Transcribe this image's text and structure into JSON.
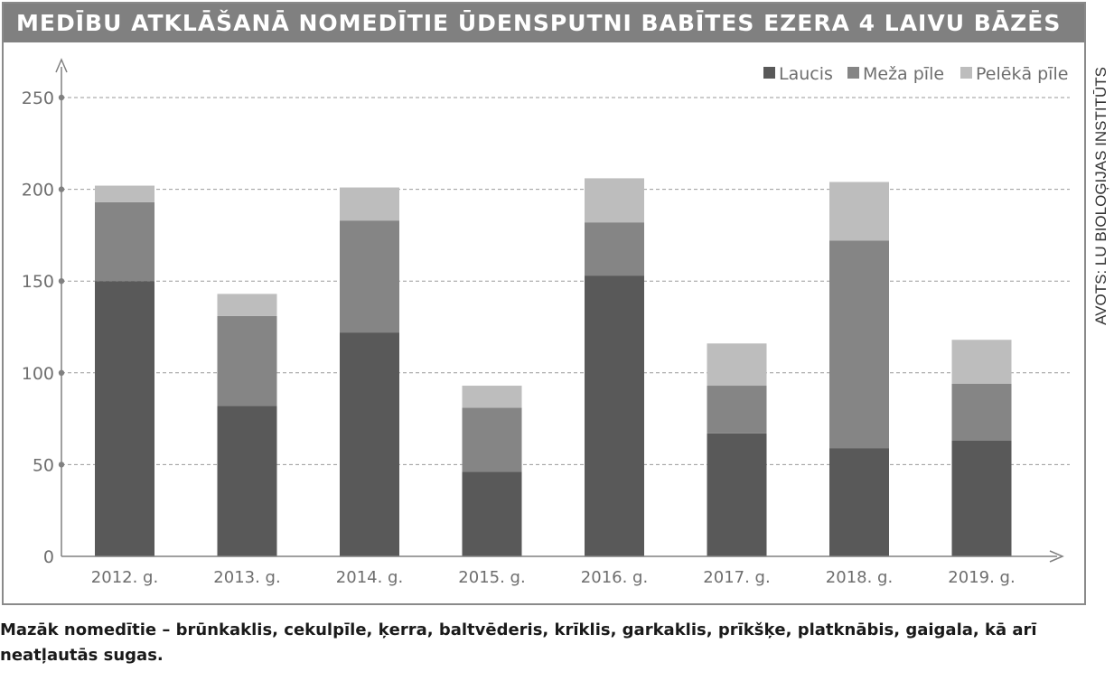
{
  "title": "MEDĪBU ATKLĀŠANĀ NOMEDĪTIE ŪDENSPUTNI BABĪTES EZERA 4 LAIVU BĀZĒS",
  "source": "AVOTS: LU BIOLOĢIJAS INSTITŪTS",
  "caption": "Mazāk nomedītie – brūnkaklis, cekulpīle, ķerra, baltvēderis, krīklis, garkaklis, prīkšķe, platknābis, gaigala, kā arī neatļautās sugas.",
  "colors": {
    "title_bar": "#808080",
    "laucis": "#595959",
    "meza_pile": "#858585",
    "peleka_pile": "#bdbdbd"
  },
  "chart_data": {
    "type": "bar",
    "stacked": true,
    "categories": [
      "2012. g.",
      "2013. g.",
      "2014. g.",
      "2015. g.",
      "2016. g.",
      "2017. g.",
      "2018. g.",
      "2019. g."
    ],
    "series": [
      {
        "name": "Laucis",
        "values": [
          150,
          82,
          122,
          46,
          153,
          67,
          59,
          63
        ],
        "color": "#595959"
      },
      {
        "name": "Meža pīle",
        "values": [
          43,
          49,
          61,
          35,
          29,
          26,
          113,
          31
        ],
        "color": "#858585"
      },
      {
        "name": "Pelēkā pīle",
        "values": [
          9,
          12,
          18,
          12,
          24,
          23,
          32,
          24
        ],
        "color": "#bdbdbd"
      }
    ],
    "yticks": [
      0,
      50,
      100,
      150,
      200,
      250
    ],
    "ylim": [
      0,
      250
    ],
    "grid": true,
    "legend_position": "top-right"
  }
}
